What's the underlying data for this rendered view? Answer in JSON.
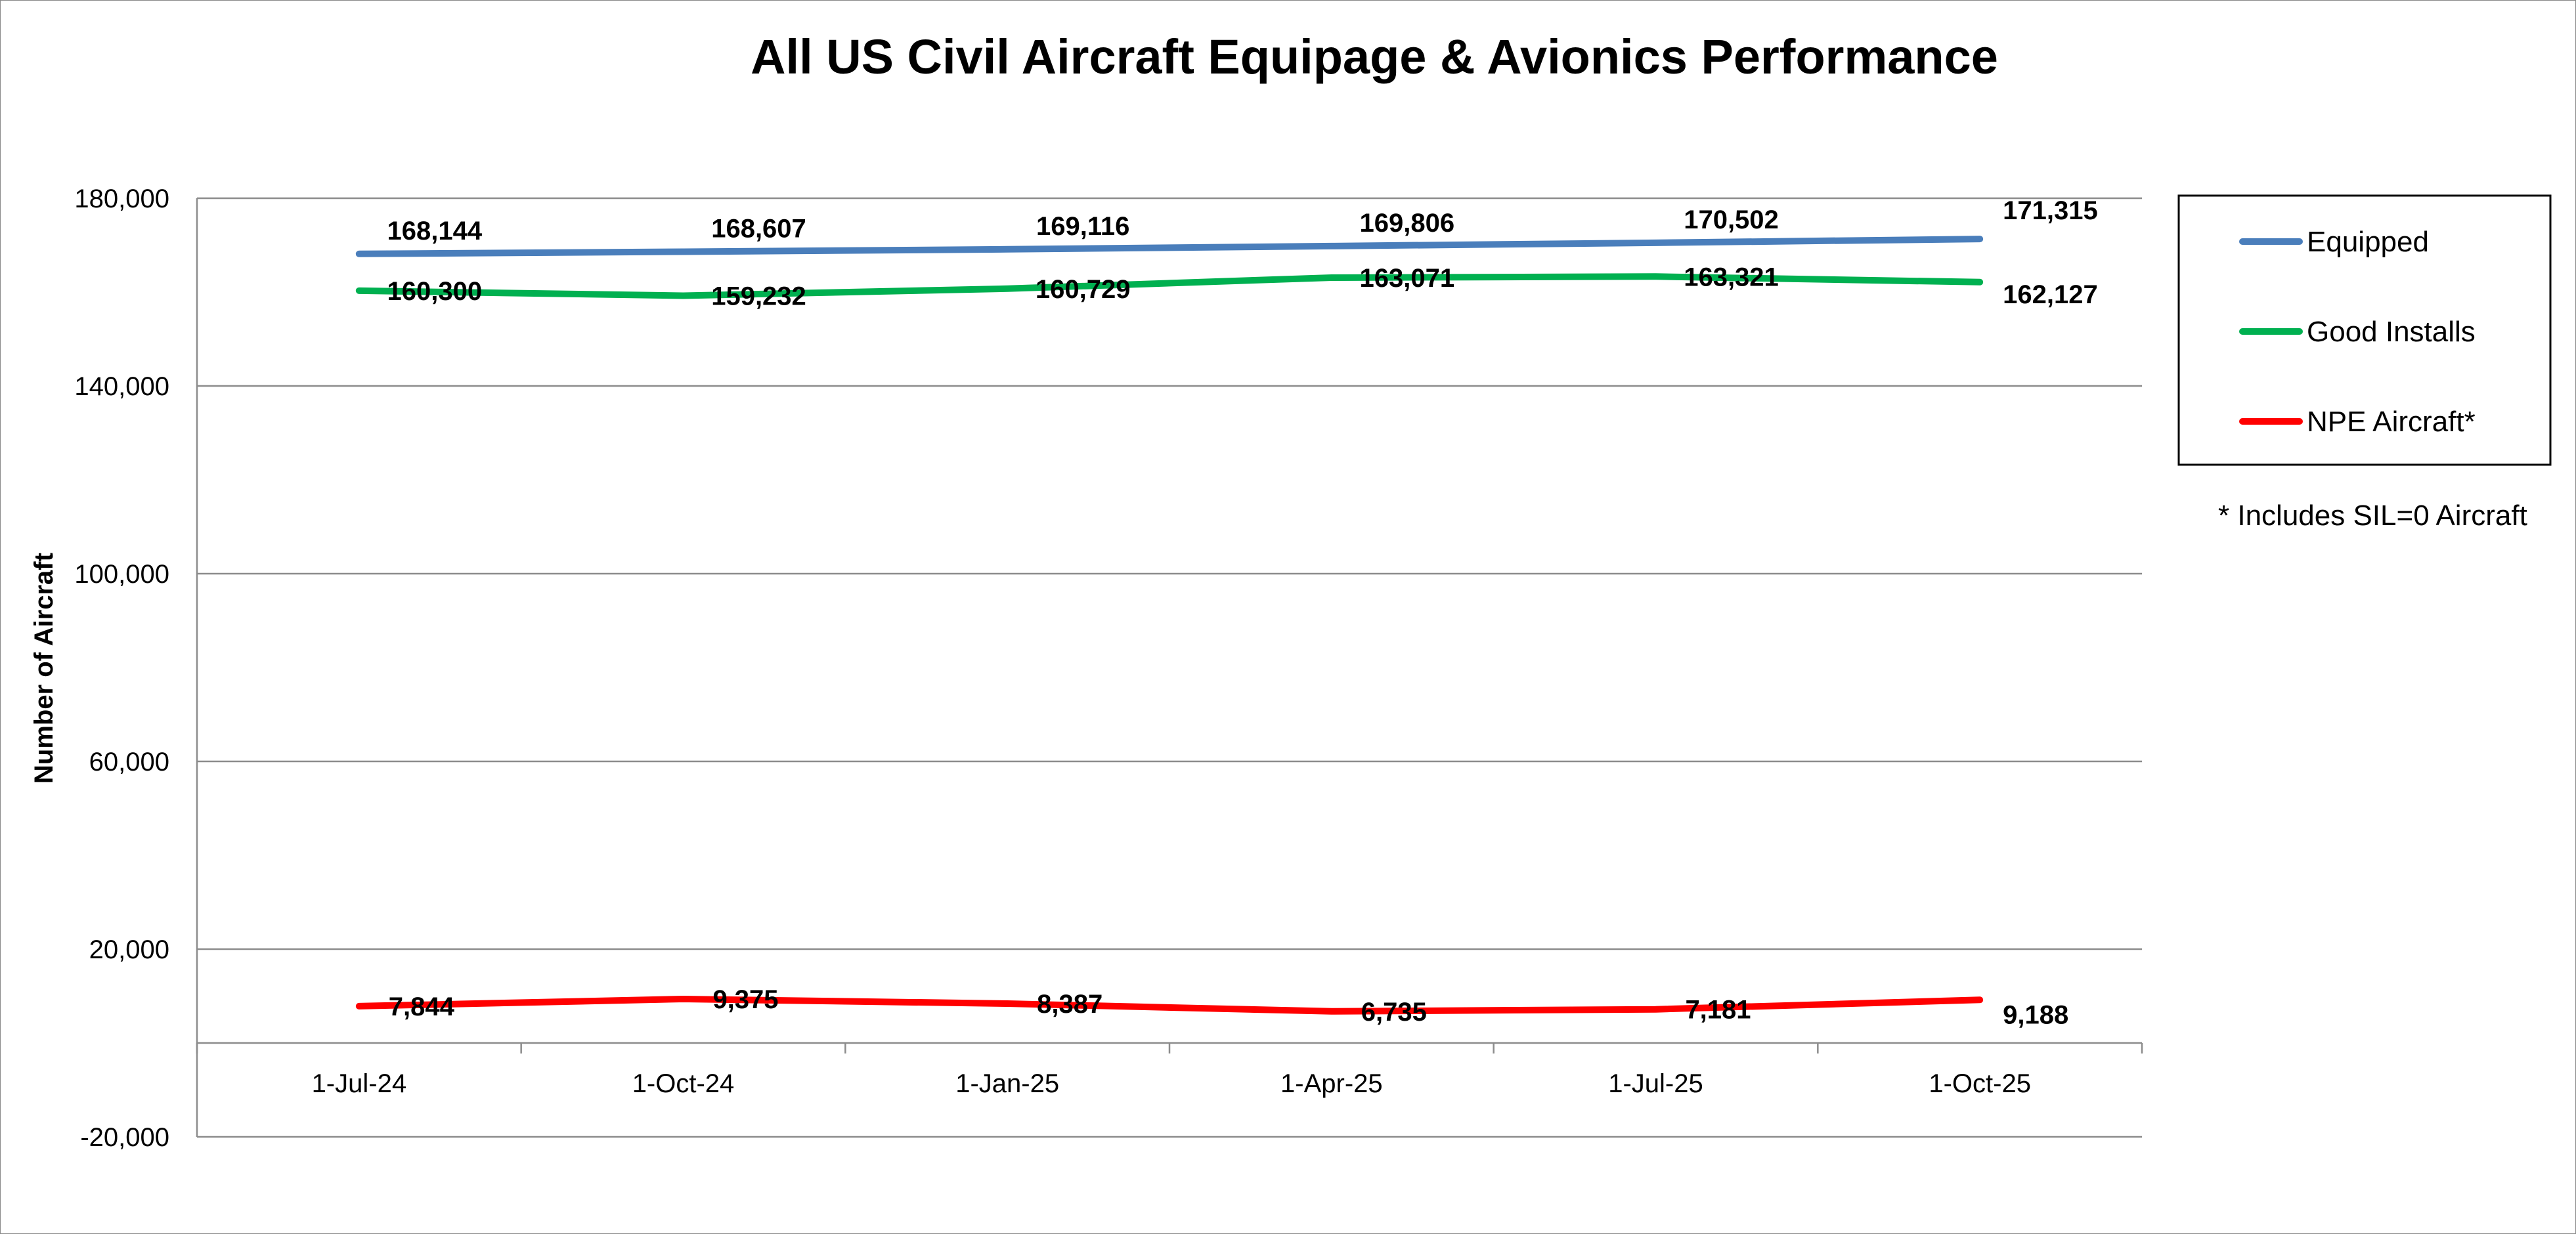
{
  "chart_data": {
    "type": "line",
    "title": "All US Civil Aircraft Equipage & Avionics Performance",
    "xlabel": "",
    "ylabel": "Number of Aircraft",
    "categories": [
      "1-Jul-24",
      "1-Oct-24",
      "1-Jan-25",
      "1-Apr-25",
      "1-Jul-25",
      "1-Oct-25"
    ],
    "ylim": [
      -20000,
      180000
    ],
    "yticks": [
      -20000,
      20000,
      60000,
      100000,
      140000,
      180000
    ],
    "ytick_labels": [
      "-20,000",
      "20,000",
      "60,000",
      "100,000",
      "140,000",
      "180,000"
    ],
    "grid": true,
    "legend_position": "right",
    "series": [
      {
        "name": "Equipped",
        "color": "#4a7ebb",
        "values": [
          168144,
          168607,
          169116,
          169806,
          170502,
          171315
        ],
        "labels": [
          "168,144",
          "168,607",
          "169,116",
          "169,806",
          "170,502",
          "171,315"
        ]
      },
      {
        "name": "Good Installs",
        "color": "#00b050",
        "values": [
          160300,
          159232,
          160729,
          163071,
          163321,
          162127
        ],
        "labels": [
          "160,300",
          "159,232",
          "160,729",
          "163,071",
          "163,321",
          "162,127"
        ]
      },
      {
        "name": "NPE Aircraft*",
        "color": "#ff0000",
        "values": [
          7844,
          9375,
          8387,
          6735,
          7181,
          9188
        ],
        "labels": [
          "7,844",
          "9,375",
          "8,387",
          "6,735",
          "7,181",
          "9,188"
        ]
      }
    ],
    "footnote": "* Includes SIL=0 Aircraft"
  }
}
